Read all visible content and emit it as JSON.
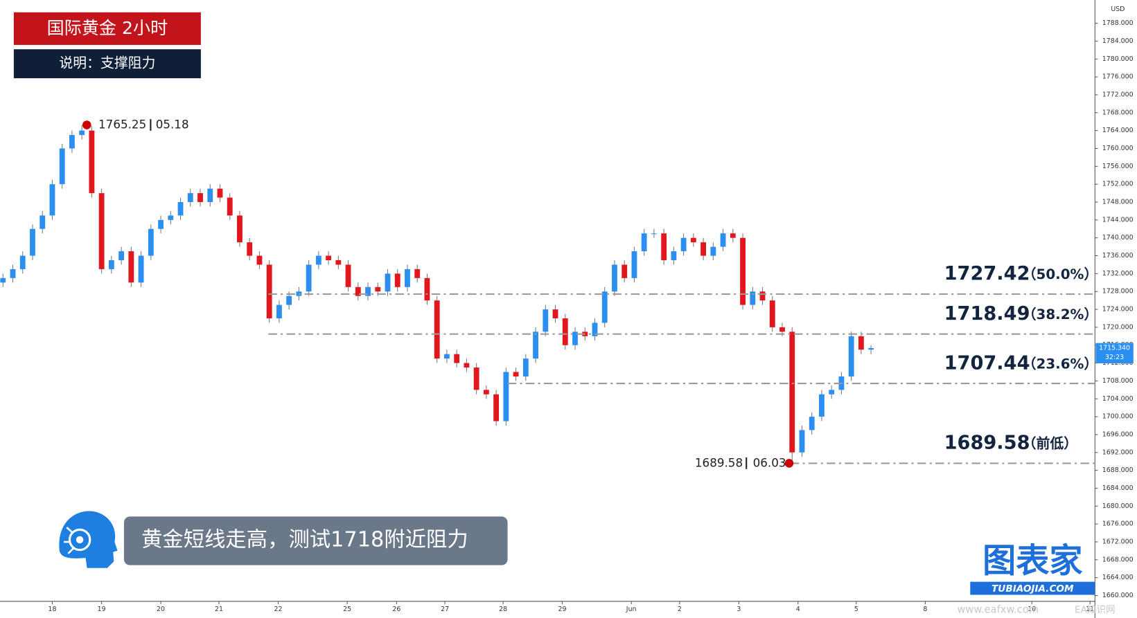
{
  "chart_data": {
    "type": "candlestick",
    "title": "国际黄金  2小时",
    "subtitle": "说明：支撑阻力",
    "caption": "黄金短线走高，测试1718附近阻力",
    "currency": "USD",
    "up_color": "#2a8ff0",
    "down_color": "#e3161d",
    "x": [
      0,
      1,
      2,
      3,
      4,
      5,
      6,
      7,
      8,
      9,
      10,
      11,
      12,
      13,
      14,
      15,
      16,
      17,
      18,
      19,
      20,
      21,
      22,
      23,
      24,
      25,
      26,
      27,
      28,
      29,
      30,
      31,
      32,
      33,
      34,
      35,
      36,
      37,
      38,
      39,
      40,
      41,
      42,
      43,
      44,
      45,
      46,
      47,
      48,
      49,
      50,
      51,
      52,
      53,
      54,
      55,
      56,
      57,
      58,
      59,
      60,
      61,
      62,
      63,
      64,
      65,
      66,
      67,
      68,
      69,
      70,
      71,
      72,
      73,
      74,
      75,
      76,
      77,
      78,
      79,
      80,
      81,
      82,
      83,
      84,
      85,
      86,
      87,
      88
    ],
    "open": [
      1730,
      1731,
      1733,
      1736,
      1742,
      1745,
      1752,
      1760,
      1763,
      1764,
      1750,
      1733,
      1735,
      1737,
      1730,
      1736,
      1742,
      1744,
      1745,
      1748,
      1750,
      1748,
      1751,
      1749,
      1745,
      1739,
      1736,
      1734,
      1722,
      1725,
      1727,
      1728,
      1734,
      1736,
      1735,
      1734,
      1729,
      1727,
      1729,
      1728,
      1732,
      1729,
      1733,
      1731,
      1726,
      1713,
      1714,
      1712,
      1711,
      1706,
      1705,
      1699,
      1710,
      1709,
      1713,
      1719,
      1724,
      1722,
      1716,
      1719,
      1718,
      1721,
      1728,
      1734,
      1731,
      1737,
      1741,
      1741,
      1735,
      1737,
      1740,
      1739,
      1736,
      1738,
      1741,
      1740,
      1725,
      1728,
      1726,
      1720,
      1719,
      1692,
      1697,
      1700,
      1705,
      1706,
      1709,
      1718,
      1715
    ],
    "high": [
      1732,
      1734,
      1737,
      1743,
      1746,
      1753,
      1761,
      1764,
      1765.25,
      1765,
      1751,
      1736,
      1738,
      1738,
      1737,
      1743,
      1745,
      1746,
      1749,
      1751,
      1751,
      1752,
      1752,
      1750,
      1746,
      1740,
      1737,
      1735,
      1726,
      1728,
      1729,
      1735,
      1737,
      1737,
      1736,
      1735,
      1730,
      1730,
      1730,
      1733,
      1733,
      1734,
      1734,
      1732,
      1727,
      1715,
      1715,
      1713,
      1712,
      1707,
      1706,
      1711,
      1711,
      1714,
      1720,
      1725,
      1725,
      1723,
      1720,
      1720,
      1722,
      1729,
      1735,
      1735,
      1738,
      1742,
      1742,
      1742,
      1738,
      1741,
      1741,
      1740,
      1739,
      1742,
      1742,
      1741,
      1729,
      1729,
      1727,
      1721,
      1720,
      1698,
      1701,
      1706,
      1707,
      1710,
      1719,
      1719,
      1716
    ],
    "low": [
      1729,
      1730,
      1732,
      1735,
      1741,
      1744,
      1751,
      1759,
      1762,
      1749,
      1732,
      1732,
      1734,
      1729,
      1729,
      1735,
      1741,
      1743,
      1744,
      1747,
      1747,
      1747,
      1748,
      1744,
      1738,
      1735,
      1733,
      1721,
      1721,
      1724,
      1726,
      1727,
      1733,
      1734,
      1733,
      1728,
      1726,
      1726,
      1727,
      1727,
      1728,
      1728,
      1730,
      1725,
      1712,
      1712,
      1711,
      1710,
      1705,
      1704,
      1698,
      1698,
      1708,
      1708,
      1712,
      1718,
      1721,
      1715,
      1715,
      1717,
      1717,
      1720,
      1727,
      1730,
      1730,
      1736,
      1740,
      1734,
      1734,
      1736,
      1738,
      1735,
      1735,
      1737,
      1739,
      1724,
      1724,
      1725,
      1719,
      1718,
      1689.58,
      1691,
      1696,
      1699,
      1704,
      1705,
      1708,
      1714,
      1714
    ],
    "close": [
      1731,
      1733,
      1736,
      1742,
      1745,
      1752,
      1760,
      1763,
      1764,
      1750,
      1733,
      1735,
      1737,
      1730,
      1736,
      1742,
      1744,
      1745,
      1748,
      1750,
      1748,
      1751,
      1749,
      1745,
      1739,
      1736,
      1734,
      1722,
      1725,
      1727,
      1728,
      1734,
      1736,
      1735,
      1734,
      1729,
      1727,
      1729,
      1728,
      1732,
      1729,
      1733,
      1731,
      1726,
      1713,
      1714,
      1712,
      1711,
      1706,
      1705,
      1699,
      1710,
      1709,
      1713,
      1719,
      1724,
      1722,
      1716,
      1719,
      1718,
      1721,
      1728,
      1734,
      1731,
      1737,
      1741,
      1741,
      1735,
      1737,
      1740,
      1739,
      1736,
      1738,
      1741,
      1740,
      1725,
      1728,
      1726,
      1720,
      1719,
      1692,
      1697,
      1700,
      1705,
      1706,
      1709,
      1718,
      1715,
      1715.34
    ],
    "xlim": [
      -0.3,
      110.7
    ],
    "xticks": [
      {
        "value": 5.0,
        "label": "18"
      },
      {
        "value": 10.0,
        "label": "19"
      },
      {
        "value": 16.0,
        "label": "20"
      },
      {
        "value": 21.9,
        "label": "21"
      },
      {
        "value": 27.9,
        "label": "22"
      },
      {
        "value": 34.9,
        "label": "25"
      },
      {
        "value": 39.9,
        "label": "26"
      },
      {
        "value": 44.8,
        "label": "27"
      },
      {
        "value": 50.7,
        "label": "28"
      },
      {
        "value": 56.7,
        "label": "29"
      },
      {
        "value": 63.7,
        "label": "Jun"
      },
      {
        "value": 68.6,
        "label": "2"
      },
      {
        "value": 74.6,
        "label": "3"
      },
      {
        "value": 80.6,
        "label": "4"
      },
      {
        "value": 86.5,
        "label": "5"
      },
      {
        "value": 93.5,
        "label": "8"
      },
      {
        "value": 104.3,
        "label": "10"
      },
      {
        "value": 110.2,
        "label": "11"
      }
    ],
    "ylim": [
      1658.7,
      1793.2
    ],
    "yticks": [
      {
        "value": 1660,
        "label": "1660.000"
      },
      {
        "value": 1664,
        "label": "1664.000"
      },
      {
        "value": 1668,
        "label": "1668.000"
      },
      {
        "value": 1672,
        "label": "1672.000"
      },
      {
        "value": 1676,
        "label": "1676.000"
      },
      {
        "value": 1680,
        "label": "1680.000"
      },
      {
        "value": 1684,
        "label": "1684.000"
      },
      {
        "value": 1688,
        "label": "1688.000"
      },
      {
        "value": 1692,
        "label": "1692.000"
      },
      {
        "value": 1696,
        "label": "1696.000"
      },
      {
        "value": 1700,
        "label": "1700.000"
      },
      {
        "value": 1704,
        "label": "1704.000"
      },
      {
        "value": 1708,
        "label": "1708.000"
      },
      {
        "value": 1712,
        "label": "1712.000"
      },
      {
        "value": 1716,
        "label": "1716.000"
      },
      {
        "value": 1720,
        "label": "1720.000"
      },
      {
        "value": 1724,
        "label": "1724.000"
      },
      {
        "value": 1728,
        "label": "1728.000"
      },
      {
        "value": 1732,
        "label": "1732.000"
      },
      {
        "value": 1736,
        "label": "1736.000"
      },
      {
        "value": 1740,
        "label": "1740.000"
      },
      {
        "value": 1744,
        "label": "1744.000"
      },
      {
        "value": 1748,
        "label": "1748.000"
      },
      {
        "value": 1752,
        "label": "1752.000"
      },
      {
        "value": 1756,
        "label": "1756.000"
      },
      {
        "value": 1760,
        "label": "1760.000"
      },
      {
        "value": 1764,
        "label": "1764.000"
      },
      {
        "value": 1768,
        "label": "1768.000"
      },
      {
        "value": 1772,
        "label": "1772.000"
      },
      {
        "value": 1776,
        "label": "1776.000"
      },
      {
        "value": 1780,
        "label": "1780.000"
      },
      {
        "value": 1784,
        "label": "1784.000"
      },
      {
        "value": 1788,
        "label": "1788.000"
      }
    ],
    "levels": [
      {
        "value": 1727.42,
        "label": "（50.0%）"
      },
      {
        "value": 1718.49,
        "label": "（38.2%）"
      },
      {
        "value": 1707.44,
        "label": "（23.6%）"
      },
      {
        "value": 1689.58,
        "label": "（前低）"
      }
    ],
    "annotations": [
      {
        "x": 8.5,
        "price": 1765.25,
        "date": "05.18"
      },
      {
        "x": 79.7,
        "price": 1689.58,
        "date": "06.03"
      }
    ],
    "last_price": {
      "value": 1715.34,
      "label": "1715.340"
    },
    "countdown": "32:23",
    "logo": {
      "name": "图表家",
      "url": "TUBIAOJIA.COM"
    },
    "watermark": [
      "www.eafxw.com",
      "EA知识网"
    ]
  }
}
